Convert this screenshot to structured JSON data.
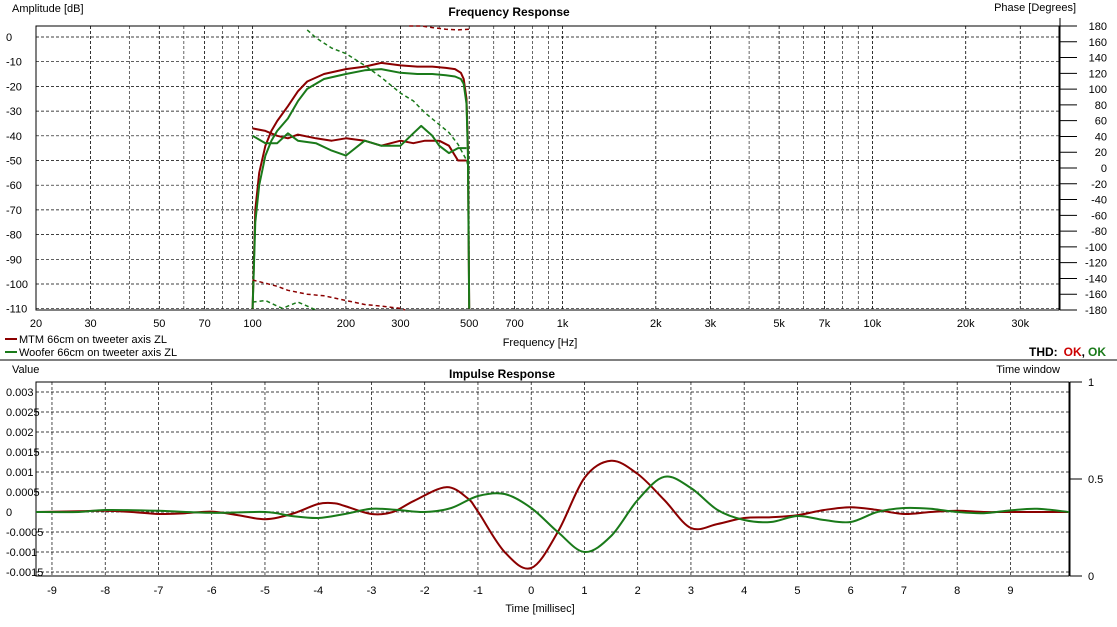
{
  "colors": {
    "mtm": "#8b0000",
    "woofer": "#1a7a1a",
    "ok_red": "#cc0000",
    "ok_green": "#1a7a1a"
  },
  "legend": {
    "mtm": "MTM 66cm on tweeter axis ZL",
    "woofer": "Woofer 66cm on tweeter axis ZL"
  },
  "thd": {
    "label": "THD:",
    "ok1": "OK",
    "sep": ",",
    "ok2": "OK"
  },
  "chart_data": [
    {
      "type": "line",
      "title": "Frequency Response",
      "xlabel": "Frequency [Hz]",
      "ylabel": "Amplitude [dB]",
      "y2label": "Phase [Degrees]",
      "x_scale": "log",
      "xlim": [
        20,
        40000
      ],
      "ylim": [
        -110,
        5
      ],
      "y2lim": [
        -180,
        180
      ],
      "x_ticks": [
        20,
        30,
        50,
        70,
        100,
        200,
        300,
        500,
        700,
        1000,
        2000,
        3000,
        5000,
        7000,
        10000,
        20000,
        30000
      ],
      "x_tick_labels": [
        "20",
        "30",
        "50",
        "70",
        "100",
        "200",
        "300",
        "500",
        "700",
        "1k",
        "2k",
        "3k",
        "5k",
        "7k",
        "10k",
        "20k",
        "30k"
      ],
      "y_ticks": [
        0,
        -10,
        -20,
        -30,
        -40,
        -50,
        -60,
        -70,
        -80,
        -90,
        -100,
        -110
      ],
      "y2_ticks": [
        180,
        160,
        140,
        120,
        100,
        80,
        60,
        40,
        20,
        0,
        -20,
        -40,
        -60,
        -80,
        -100,
        -120,
        -140,
        -160,
        -180
      ],
      "grid": true,
      "series": [
        {
          "name": "MTM 66cm on tweeter axis ZL",
          "color": "mtm",
          "style": "solid",
          "axis": "amplitude",
          "x": [
            100,
            102,
            105,
            110,
            115,
            120,
            130,
            140,
            150,
            170,
            200,
            230,
            260,
            300,
            340,
            380,
            420,
            450,
            470,
            480,
            490,
            495,
            500
          ],
          "y": [
            -110,
            -70,
            -55,
            -44,
            -38,
            -34,
            -28,
            -22,
            -18,
            -15,
            -13,
            -12,
            -10.5,
            -11.5,
            -12,
            -12,
            -12.5,
            -13,
            -14.5,
            -17,
            -25,
            -45,
            -110
          ]
        },
        {
          "name": "MTM 66cm on tweeter axis ZL (distortion)",
          "color": "mtm",
          "style": "solid",
          "axis": "amplitude",
          "x": [
            100,
            110,
            120,
            130,
            140,
            160,
            180,
            200,
            230,
            260,
            300,
            330,
            360,
            400,
            430,
            460,
            490
          ],
          "y": [
            -37,
            -38,
            -40,
            -41,
            -39.5,
            -41,
            -42,
            -41,
            -42,
            -44,
            -42,
            -43,
            -42,
            -42,
            -44,
            -50,
            -50
          ]
        },
        {
          "name": "Woofer 66cm on tweeter axis ZL",
          "color": "woofer",
          "style": "solid",
          "axis": "amplitude",
          "x": [
            100,
            102,
            105,
            110,
            115,
            120,
            130,
            140,
            150,
            170,
            200,
            230,
            260,
            300,
            340,
            380,
            420,
            450,
            470,
            480,
            490,
            495,
            500
          ],
          "y": [
            -110,
            -75,
            -60,
            -48,
            -42,
            -38,
            -33,
            -26,
            -21,
            -17,
            -15,
            -13.5,
            -13,
            -14.5,
            -15,
            -15,
            -15.5,
            -16,
            -17,
            -19,
            -27,
            -47,
            -110
          ]
        },
        {
          "name": "Woofer 66cm on tweeter axis ZL (distortion)",
          "color": "woofer",
          "style": "solid",
          "axis": "amplitude",
          "x": [
            100,
            110,
            120,
            130,
            140,
            160,
            180,
            200,
            230,
            260,
            300,
            330,
            350,
            380,
            400,
            430,
            460,
            490
          ],
          "y": [
            -40,
            -43,
            -43,
            -39,
            -42,
            -43,
            -46,
            -48,
            -42,
            -44,
            -44,
            -39,
            -36,
            -40,
            -44,
            -47,
            -45,
            -45
          ]
        },
        {
          "name": "MTM 66cm on tweeter axis ZL (phase)",
          "color": "mtm",
          "style": "dashed",
          "axis": "phase",
          "x": [
            100,
            110,
            120,
            130,
            150,
            170,
            200,
            230,
            260,
            300,
            310
          ],
          "y": [
            -142,
            -146,
            -150,
            -155,
            -160,
            -162,
            -168,
            -173,
            -175,
            -178,
            -180
          ]
        },
        {
          "name": "MTM 66cm on tweeter axis ZL (phase top)",
          "color": "mtm",
          "style": "dashed",
          "axis": "phase",
          "x": [
            320,
            350,
            380,
            420,
            460,
            500
          ],
          "y": [
            180,
            180,
            178,
            176,
            175,
            176
          ]
        },
        {
          "name": "Woofer 66cm on tweeter axis ZL (phase)",
          "color": "woofer",
          "style": "dashed",
          "axis": "phase",
          "x": [
            100,
            110,
            120,
            125,
            130,
            140,
            150,
            160
          ],
          "y": [
            -170,
            -168,
            -175,
            -178,
            -175,
            -170,
            -175,
            -180
          ]
        },
        {
          "name": "Woofer 66cm on tweeter axis ZL (phase top)",
          "color": "woofer",
          "style": "dashed",
          "axis": "phase",
          "x": [
            150,
            160,
            180,
            200,
            230,
            260,
            300,
            330,
            360,
            400,
            430,
            460,
            490,
            500
          ],
          "y": [
            175,
            165,
            152,
            145,
            130,
            115,
            95,
            85,
            70,
            55,
            45,
            30,
            10,
            -3
          ]
        }
      ]
    },
    {
      "type": "line",
      "title": "Impulse Response",
      "xlabel": "Time [millisec]",
      "ylabel": "Value",
      "y2label": "Time window",
      "xlim": [
        -9.3,
        10.1
      ],
      "ylim": [
        -0.0016,
        0.0033
      ],
      "y2lim": [
        0,
        1
      ],
      "x_ticks": [
        -9,
        -8,
        -7,
        -6,
        -5,
        -4,
        -3,
        -2,
        -1,
        0,
        1,
        2,
        3,
        4,
        5,
        6,
        7,
        8,
        9
      ],
      "x_tick_labels": [
        "-9",
        "-8",
        "-7",
        "-6",
        "-5",
        "-4",
        "-3",
        "-2",
        "-1",
        "0",
        "1",
        "2",
        "3",
        "4",
        "5",
        "6",
        "7",
        "8",
        "9"
      ],
      "y_ticks": [
        0.003,
        0.0025,
        0.002,
        0.0015,
        0.001,
        0.0005,
        0,
        -0.0005,
        -0.001,
        -0.0015
      ],
      "y_tick_labels": [
        "0.003",
        "0.0025",
        "0.002",
        "0.0015",
        "0.001",
        "0.0005",
        "0",
        "-0.0005",
        "-0.001",
        "-0.0015"
      ],
      "y2_ticks": [
        1,
        0.5,
        0
      ],
      "y2_tick_labels": [
        "1",
        "0.5",
        "0"
      ],
      "grid": true,
      "series": [
        {
          "name": "MTM 66cm on tweeter axis ZL",
          "color": "mtm",
          "x": [
            -9.3,
            -8.5,
            -8,
            -7.5,
            -7,
            -6.5,
            -6,
            -5.5,
            -5,
            -4.5,
            -4,
            -3.7,
            -3.5,
            -3,
            -2.6,
            -2.2,
            -1.6,
            -1.2,
            -1,
            -0.5,
            0,
            0.5,
            1,
            1.5,
            2,
            2.5,
            3,
            3.5,
            4,
            4.5,
            5,
            5.5,
            6,
            6.5,
            7,
            7.5,
            8,
            8.5,
            9,
            10.1
          ],
          "y": [
            0,
            2e-05,
            3e-05,
            0,
            -5e-05,
            -3e-05,
            1e-05,
            -8e-05,
            -0.00018,
            -5e-05,
            0.0002,
            0.00022,
            0.00015,
            -5e-05,
            0,
            0.00028,
            0.00062,
            0.00035,
            1e-05,
            -0.001,
            -0.0014,
            -0.0005,
            0.00085,
            0.00128,
            0.00095,
            0.0003,
            -0.0004,
            -0.0003,
            -0.00015,
            -0.00013,
            -8e-05,
            5e-05,
            0.00012,
            5e-05,
            -5e-05,
            0,
            3e-05,
            0,
            0,
            0
          ]
        },
        {
          "name": "Woofer 66cm on tweeter axis ZL",
          "color": "woofer",
          "x": [
            -9.3,
            -8.5,
            -8,
            -7,
            -6,
            -5,
            -4.5,
            -4,
            -3.5,
            -3,
            -2.5,
            -2,
            -1.5,
            -1,
            -0.5,
            0,
            0.5,
            1,
            1.5,
            2,
            2.5,
            3,
            3.5,
            4,
            4.5,
            5,
            5.5,
            6,
            6.5,
            7,
            7.5,
            8,
            8.5,
            9,
            9.5,
            10.1
          ],
          "y": [
            0,
            0,
            5e-05,
            3e-05,
            -2e-05,
            0,
            -0.0001,
            -0.00015,
            -5e-05,
            8e-05,
            5e-05,
            0,
            0.0001,
            0.0004,
            0.00045,
            0.0001,
            -0.0005,
            -0.001,
            -0.0006,
            0.0003,
            0.00088,
            0.0006,
            5e-05,
            -0.0002,
            -0.00025,
            -0.0001,
            -0.0002,
            -0.00025,
            0,
            0.0001,
            8e-05,
            0,
            -3e-05,
            4e-05,
            8e-05,
            0
          ]
        }
      ]
    }
  ]
}
